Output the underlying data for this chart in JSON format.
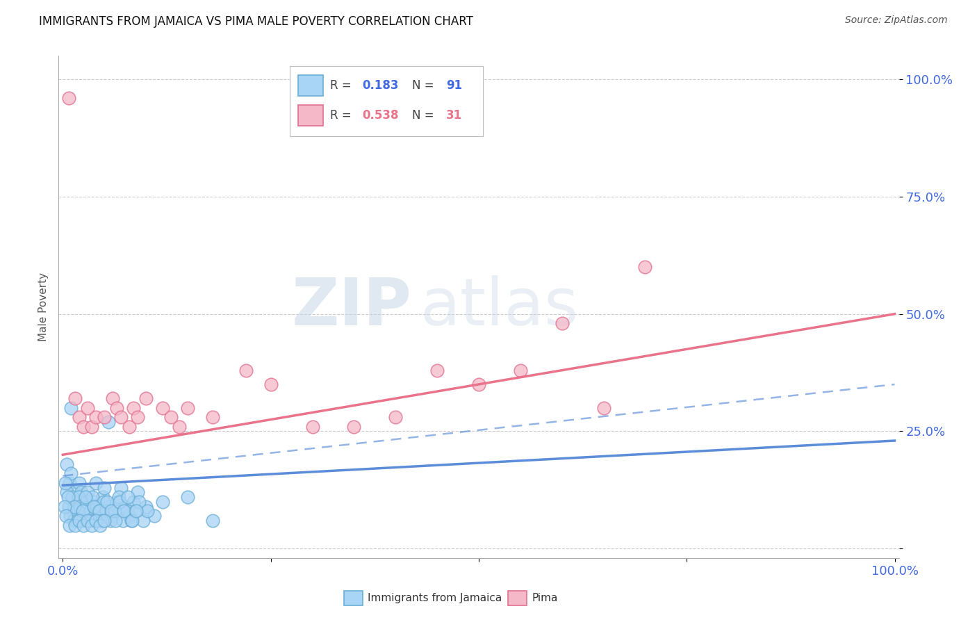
{
  "title": "IMMIGRANTS FROM JAMAICA VS PIMA MALE POVERTY CORRELATION CHART",
  "source": "Source: ZipAtlas.com",
  "ylabel": "Male Poverty",
  "watermark_zip": "ZIP",
  "watermark_atlas": "atlas",
  "color_blue": "#a8d4f5",
  "color_blue_edge": "#6baed6",
  "color_pink": "#f4b8c8",
  "color_pink_edge": "#e07090",
  "color_blue_line": "#5b8dd9",
  "color_pink_line": "#e8738a",
  "color_axis_text": "#4169E1",
  "color_ylabel": "#555555",
  "blue_points": [
    [
      0.005,
      0.18
    ],
    [
      0.008,
      0.14
    ],
    [
      0.01,
      0.16
    ],
    [
      0.012,
      0.08
    ],
    [
      0.015,
      0.12
    ],
    [
      0.018,
      0.1
    ],
    [
      0.02,
      0.14
    ],
    [
      0.022,
      0.12
    ],
    [
      0.025,
      0.1
    ],
    [
      0.028,
      0.08
    ],
    [
      0.03,
      0.12
    ],
    [
      0.032,
      0.09
    ],
    [
      0.035,
      0.07
    ],
    [
      0.038,
      0.1
    ],
    [
      0.04,
      0.14
    ],
    [
      0.042,
      0.09
    ],
    [
      0.045,
      0.08
    ],
    [
      0.048,
      0.11
    ],
    [
      0.05,
      0.13
    ],
    [
      0.055,
      0.09
    ],
    [
      0.06,
      0.07
    ],
    [
      0.065,
      0.1
    ],
    [
      0.07,
      0.13
    ],
    [
      0.075,
      0.09
    ],
    [
      0.08,
      0.07
    ],
    [
      0.085,
      0.1
    ],
    [
      0.09,
      0.12
    ],
    [
      0.1,
      0.09
    ],
    [
      0.11,
      0.07
    ],
    [
      0.12,
      0.1
    ],
    [
      0.005,
      0.12
    ],
    [
      0.007,
      0.09
    ],
    [
      0.009,
      0.07
    ],
    [
      0.011,
      0.11
    ],
    [
      0.013,
      0.06
    ],
    [
      0.016,
      0.08
    ],
    [
      0.019,
      0.11
    ],
    [
      0.021,
      0.09
    ],
    [
      0.023,
      0.06
    ],
    [
      0.026,
      0.08
    ],
    [
      0.029,
      0.1
    ],
    [
      0.031,
      0.06
    ],
    [
      0.033,
      0.08
    ],
    [
      0.036,
      0.11
    ],
    [
      0.039,
      0.06
    ],
    [
      0.041,
      0.09
    ],
    [
      0.043,
      0.08
    ],
    [
      0.046,
      0.06
    ],
    [
      0.049,
      0.1
    ],
    [
      0.052,
      0.08
    ],
    [
      0.057,
      0.06
    ],
    [
      0.062,
      0.08
    ],
    [
      0.067,
      0.11
    ],
    [
      0.072,
      0.06
    ],
    [
      0.077,
      0.08
    ],
    [
      0.082,
      0.06
    ],
    [
      0.087,
      0.08
    ],
    [
      0.092,
      0.1
    ],
    [
      0.097,
      0.06
    ],
    [
      0.102,
      0.08
    ],
    [
      0.003,
      0.14
    ],
    [
      0.006,
      0.11
    ],
    [
      0.014,
      0.09
    ],
    [
      0.017,
      0.06
    ],
    [
      0.024,
      0.08
    ],
    [
      0.027,
      0.11
    ],
    [
      0.034,
      0.06
    ],
    [
      0.037,
      0.09
    ],
    [
      0.044,
      0.08
    ],
    [
      0.047,
      0.06
    ],
    [
      0.053,
      0.1
    ],
    [
      0.058,
      0.08
    ],
    [
      0.063,
      0.06
    ],
    [
      0.068,
      0.1
    ],
    [
      0.073,
      0.08
    ],
    [
      0.078,
      0.11
    ],
    [
      0.083,
      0.06
    ],
    [
      0.088,
      0.08
    ],
    [
      0.15,
      0.11
    ],
    [
      0.18,
      0.06
    ],
    [
      0.002,
      0.09
    ],
    [
      0.004,
      0.07
    ],
    [
      0.008,
      0.05
    ],
    [
      0.015,
      0.05
    ],
    [
      0.02,
      0.06
    ],
    [
      0.025,
      0.05
    ],
    [
      0.03,
      0.06
    ],
    [
      0.035,
      0.05
    ],
    [
      0.04,
      0.06
    ],
    [
      0.045,
      0.05
    ],
    [
      0.05,
      0.06
    ],
    [
      0.01,
      0.3
    ],
    [
      0.055,
      0.27
    ]
  ],
  "pink_points": [
    [
      0.007,
      0.96
    ],
    [
      0.015,
      0.32
    ],
    [
      0.02,
      0.28
    ],
    [
      0.025,
      0.26
    ],
    [
      0.03,
      0.3
    ],
    [
      0.035,
      0.26
    ],
    [
      0.04,
      0.28
    ],
    [
      0.05,
      0.28
    ],
    [
      0.06,
      0.32
    ],
    [
      0.065,
      0.3
    ],
    [
      0.07,
      0.28
    ],
    [
      0.08,
      0.26
    ],
    [
      0.085,
      0.3
    ],
    [
      0.09,
      0.28
    ],
    [
      0.1,
      0.32
    ],
    [
      0.12,
      0.3
    ],
    [
      0.13,
      0.28
    ],
    [
      0.14,
      0.26
    ],
    [
      0.15,
      0.3
    ],
    [
      0.18,
      0.28
    ],
    [
      0.22,
      0.38
    ],
    [
      0.25,
      0.35
    ],
    [
      0.3,
      0.26
    ],
    [
      0.35,
      0.26
    ],
    [
      0.4,
      0.28
    ],
    [
      0.45,
      0.38
    ],
    [
      0.5,
      0.35
    ],
    [
      0.55,
      0.38
    ],
    [
      0.6,
      0.48
    ],
    [
      0.65,
      0.3
    ],
    [
      0.7,
      0.6
    ]
  ],
  "pink_trend": [
    0.0,
    1.0,
    0.2,
    0.5
  ],
  "blue_trend": [
    0.0,
    1.0,
    0.135,
    0.23
  ],
  "blue_dashed": [
    0.0,
    1.0,
    0.155,
    0.35
  ]
}
